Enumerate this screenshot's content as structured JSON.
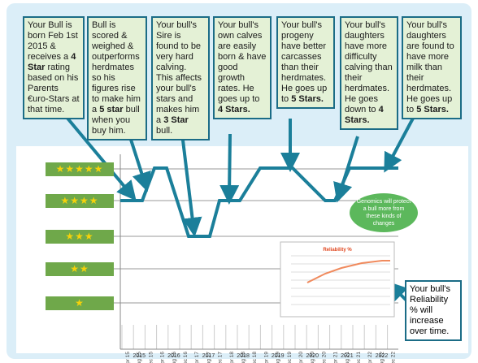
{
  "boxes": [
    {
      "parts": [
        {
          "text": "Your Bull is born Feb 1st 2015 & receives a ",
          "bold": false
        },
        {
          "text": "4 Star",
          "bold": true
        },
        {
          "text": " rating based on his Parents €uro-Stars at that time.",
          "bold": false
        }
      ]
    },
    {
      "parts": [
        {
          "text": "Bull is scored & weighed & outperforms herdmates so his figures rise to make him a ",
          "bold": false
        },
        {
          "text": "5 star",
          "bold": true
        },
        {
          "text": " bull when you buy him.",
          "bold": false
        }
      ]
    },
    {
      "parts": [
        {
          "text": "Your bull's Sire is found to be very hard calving. This affects your bull's stars and makes him a ",
          "bold": false
        },
        {
          "text": "3 Star",
          "bold": true
        },
        {
          "text": " bull.",
          "bold": false
        }
      ]
    },
    {
      "parts": [
        {
          "text": "Your bull's own calves are easily born & have good growth rates. He goes up to ",
          "bold": false
        },
        {
          "text": "4 Stars.",
          "bold": true
        }
      ]
    },
    {
      "parts": [
        {
          "text": "Your bull's progeny have better carcasses than their herdmates. He goes up to ",
          "bold": false
        },
        {
          "text": "5 Stars.",
          "bold": true
        }
      ]
    },
    {
      "parts": [
        {
          "text": "Your bull's daughters have more difficulty calving than their herdmates. He goes down to ",
          "bold": false
        },
        {
          "text": "4 Stars.",
          "bold": true
        }
      ]
    },
    {
      "parts": [
        {
          "text": "Your bull's daughters are found to have more milk than their herdmates. He goes up to ",
          "bold": false
        },
        {
          "text": "5 Stars.",
          "bold": true
        }
      ]
    }
  ],
  "star_labels": [
    "★★★★★",
    "★★★★",
    "★★★",
    "★★",
    "★"
  ],
  "months": [
    "Apr 15",
    "Aug 15",
    "Dec 15",
    "Apr 16",
    "Aug 16",
    "Dec 16",
    "Apr 17",
    "Aug 17",
    "Dec 17",
    "Apr 18",
    "Aug 18",
    "Dec 18",
    "Apr 19",
    "Aug 19",
    "Dec 19",
    "Apr 20",
    "Aug 20",
    "Dec 20",
    "Apr 21",
    "Aug 21",
    "Dec 21",
    "Apr 22",
    "Aug 22",
    "Dec 22"
  ],
  "years": [
    "2015",
    "2016",
    "2017",
    "2018",
    "2019",
    "2020",
    "2021",
    "2022"
  ],
  "genomics_note": "Genomics will protect a bull more from these kinds of changes",
  "reliability_chart_title": "Reliability %",
  "reliability_note": "Your bull's Reliability % will increase over time."
}
